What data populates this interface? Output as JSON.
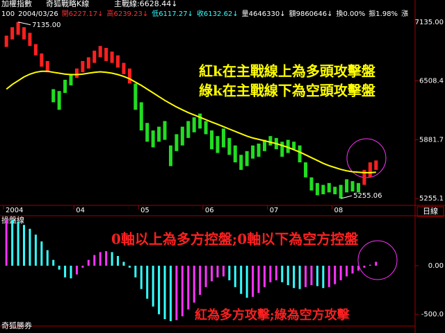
{
  "header": {
    "title": "加權指數",
    "indicator": "奇狐戰略K線",
    "ma": "主戰線:6628.44↓",
    "line2": [
      "100",
      "2004/03/26",
      "開6227.17↓",
      "高6239.23↓",
      "低6117.27↓",
      "收6132.62↓",
      "量4646330↓",
      "額9860646↓",
      "換0.00%",
      "振1.98%",
      "漲"
    ]
  },
  "chart_data": [
    {
      "type": "candlestick",
      "ylim": [
        5196.8,
        7251.6
      ],
      "yticks": [
        {
          "value": 7135,
          "label": "7135.00"
        },
        6508.4,
        5881.7,
        5255.1
      ],
      "categories": [
        "2004",
        null,
        null,
        null,
        null,
        null,
        null,
        null,
        null,
        null,
        null,
        null,
        "04",
        null,
        null,
        null,
        null,
        null,
        null,
        null,
        null,
        null,
        null,
        "05",
        null,
        null,
        null,
        null,
        null,
        null,
        null,
        null,
        null,
        null,
        "06",
        null,
        null,
        null,
        null,
        null,
        null,
        null,
        null,
        null,
        null,
        "07",
        null,
        null,
        null,
        null,
        null,
        null,
        null,
        null,
        null,
        null,
        "08",
        null,
        null,
        null,
        null,
        null,
        null,
        null
      ],
      "bars": [
        [
          6870,
          6990
        ],
        [
          6950,
          7080
        ],
        [
          7000,
          7135
        ],
        [
          6950,
          7080
        ],
        [
          6880,
          7020
        ],
        [
          6780,
          6900
        ],
        [
          6660,
          6800
        ],
        [
          6600,
          6720
        ],
        [
          6280,
          6420
        ],
        [
          6200,
          6400
        ],
        [
          6380,
          6520
        ],
        [
          6460,
          6580
        ],
        [
          6540,
          6640
        ],
        [
          6600,
          6720
        ],
        [
          6640,
          6760
        ],
        [
          6700,
          6830
        ],
        [
          6760,
          6880
        ],
        [
          6720,
          6860
        ],
        [
          6700,
          6820
        ],
        [
          6650,
          6780
        ],
        [
          6580,
          6700
        ],
        [
          6480,
          6640
        ],
        [
          6200,
          6480
        ],
        [
          5980,
          6280
        ],
        [
          5860,
          6060
        ],
        [
          5800,
          5980
        ],
        [
          5860,
          6020
        ],
        [
          5880,
          6080
        ],
        [
          5600,
          5820
        ],
        [
          5760,
          5940
        ],
        [
          5820,
          6020
        ],
        [
          5900,
          6080
        ],
        [
          5960,
          6120
        ],
        [
          6000,
          6160
        ],
        [
          5940,
          6080
        ],
        [
          5780,
          5980
        ],
        [
          5740,
          5920
        ],
        [
          5800,
          6000
        ],
        [
          5720,
          5900
        ],
        [
          5640,
          5820
        ],
        [
          5560,
          5720
        ],
        [
          5600,
          5760
        ],
        [
          5680,
          5820
        ],
        [
          5700,
          5840
        ],
        [
          5760,
          5880
        ],
        [
          5820,
          5920
        ],
        [
          5780,
          5900
        ],
        [
          5700,
          5860
        ],
        [
          5740,
          5880
        ],
        [
          5780,
          5860
        ],
        [
          5640,
          5820
        ],
        [
          5480,
          5640
        ],
        [
          5340,
          5480
        ],
        [
          5290,
          5420
        ],
        [
          5300,
          5400
        ],
        [
          5320,
          5420
        ],
        [
          5300,
          5380
        ],
        [
          5255,
          5400
        ],
        [
          5320,
          5460
        ],
        [
          5330,
          5440
        ],
        [
          5320,
          5420
        ],
        [
          5400,
          5560
        ],
        [
          5480,
          5640
        ],
        [
          5560,
          5660
        ]
      ],
      "up": [
        true,
        true,
        true,
        true,
        true,
        true,
        true,
        true,
        false,
        false,
        false,
        false,
        true,
        true,
        true,
        true,
        true,
        true,
        true,
        true,
        true,
        true,
        false,
        false,
        false,
        false,
        false,
        false,
        false,
        false,
        false,
        false,
        false,
        false,
        false,
        false,
        false,
        false,
        false,
        false,
        false,
        false,
        false,
        false,
        false,
        false,
        false,
        false,
        false,
        false,
        false,
        false,
        false,
        false,
        false,
        false,
        false,
        false,
        false,
        false,
        false,
        true,
        true,
        true
      ],
      "up_color": "#ff2020",
      "down_color": "#22dd22",
      "ma_values": [
        6420,
        6470,
        6510,
        6550,
        6580,
        6600,
        6610,
        6610,
        6600,
        6590,
        6580,
        6575,
        6575,
        6580,
        6590,
        6600,
        6605,
        6600,
        6590,
        6575,
        6555,
        6530,
        6495,
        6460,
        6420,
        6380,
        6340,
        6300,
        6265,
        6230,
        6200,
        6170,
        6145,
        6120,
        6095,
        6070,
        6045,
        6020,
        5995,
        5970,
        5945,
        5920,
        5900,
        5885,
        5870,
        5855,
        5840,
        5820,
        5800,
        5775,
        5750,
        5720,
        5690,
        5660,
        5630,
        5605,
        5585,
        5565,
        5550,
        5540,
        5535,
        5530,
        5530,
        5535
      ],
      "ma_color": "#ffff00",
      "annotations": [
        "紅k在主戰線上為多頭攻擊盤",
        "綠k在主戰線下為空頭攻擊盤"
      ],
      "high_label": "7135.00",
      "low_label": "5255.06",
      "period": "日線"
    },
    {
      "type": "oscillator",
      "title": "操盤線",
      "ylim": [
        -621,
        507
      ],
      "yticks": [
        {
          "value": 0,
          "label": "0.00"
        },
        {
          "value": -500,
          "label": "-500.0"
        }
      ],
      "values": [
        480,
        470,
        450,
        420,
        380,
        320,
        250,
        160,
        60,
        -40,
        -120,
        -130,
        -90,
        -20,
        60,
        110,
        140,
        150,
        140,
        100,
        40,
        -20,
        -120,
        -240,
        -340,
        -420,
        -500,
        -550,
        -570,
        -560,
        -520,
        -450,
        -380,
        -300,
        -220,
        -160,
        -120,
        -110,
        -150,
        -220,
        -290,
        -330,
        -320,
        -280,
        -220,
        -170,
        -150,
        -170,
        -200,
        -230,
        -240,
        -220,
        -200,
        -210,
        -230,
        -220,
        -190,
        -150,
        -110,
        -80,
        -50,
        -20,
        10,
        40
      ],
      "up_color": "#ff33ff",
      "down_color": "#33ffff",
      "annotations": [
        "0軸以上為多方控盤;0軸以下為空方控盤",
        "紅為多方攻擊;綠為空方攻擊"
      ],
      "footer": "奇狐勝券"
    }
  ]
}
